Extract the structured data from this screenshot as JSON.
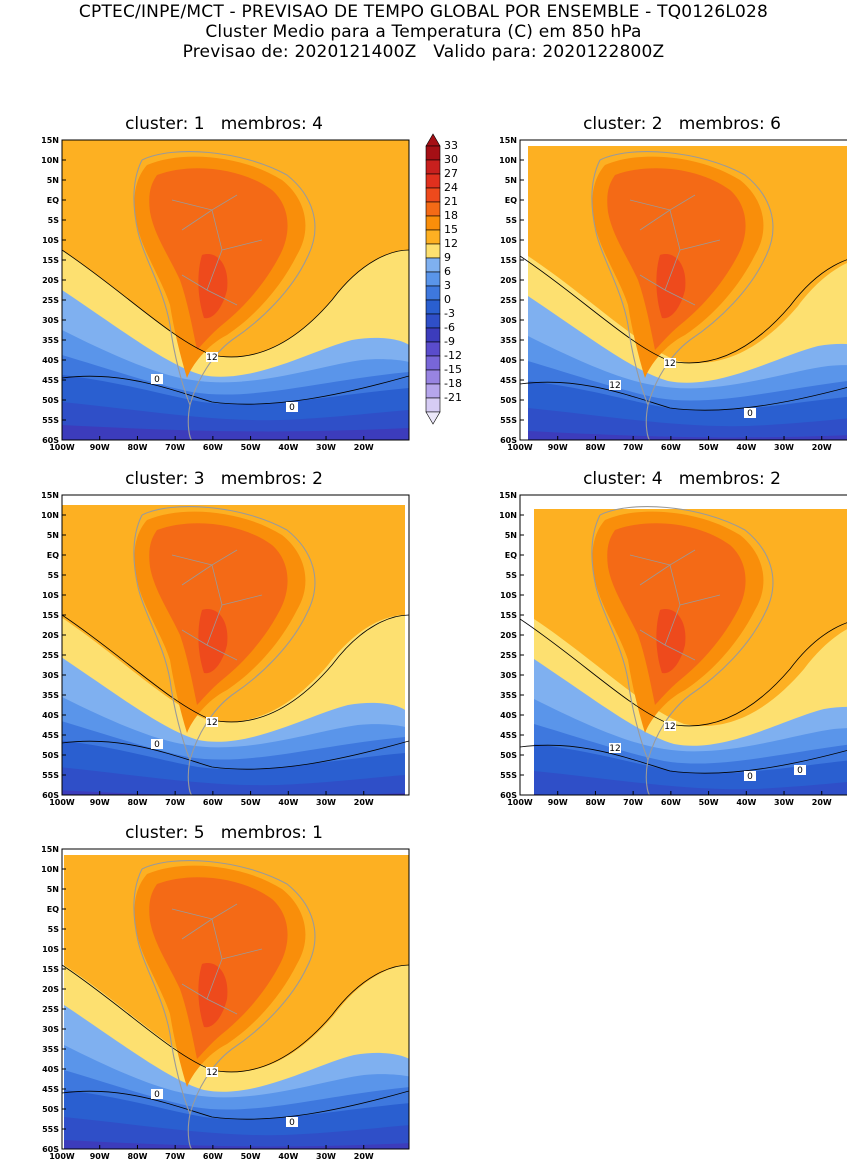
{
  "header": {
    "line1": "CPTEC/INPE/MCT - PREVISAO DE TEMPO GLOBAL POR ENSEMBLE - TQ0126L028",
    "line2": "Cluster Medio para a Temperatura (C) em 850 hPa",
    "line3": "Previsao de: 2020121400Z   Valido para: 2020122800Z"
  },
  "lat_labels": [
    "15N",
    "10N",
    "5N",
    "EQ",
    "5S",
    "10S",
    "15S",
    "20S",
    "25S",
    "30S",
    "35S",
    "40S",
    "45S",
    "50S",
    "55S",
    "60S"
  ],
  "lon_labels": [
    "100W",
    "90W",
    "80W",
    "70W",
    "60W",
    "50W",
    "40W",
    "30W",
    "20W"
  ],
  "colorbar": {
    "labels": [
      "33",
      "30",
      "27",
      "24",
      "21",
      "18",
      "15",
      "12",
      "9",
      "6",
      "3",
      "0",
      "-3",
      "-6",
      "-9",
      "-12",
      "-15",
      "-18",
      "-21"
    ],
    "colors": [
      "#a50f15",
      "#c8201e",
      "#e0301e",
      "#ee4a1c",
      "#f46a16",
      "#f98e0a",
      "#fdb022",
      "#fde070",
      "#7fb0f0",
      "#5a95ea",
      "#3e78de",
      "#2a5fd0",
      "#2f4fc8",
      "#3c3cbc",
      "#5a4ccc",
      "#7866d8",
      "#9884e2",
      "#b6a6ec",
      "#d6ccf4"
    ]
  },
  "panels": [
    {
      "title": "cluster: 1   membros: 4",
      "contour_labels": [
        "12",
        "0",
        "0"
      ]
    },
    {
      "title": "cluster: 2   membros: 6",
      "contour_labels": [
        "12",
        "12",
        "0"
      ]
    },
    {
      "title": "cluster: 3   membros: 2",
      "contour_labels": [
        "12",
        "0"
      ]
    },
    {
      "title": "cluster: 4   membros: 2",
      "contour_labels": [
        "12",
        "12",
        "0",
        "0"
      ]
    },
    {
      "title": "cluster: 5   membros: 1",
      "contour_labels": [
        "12",
        "0",
        "0"
      ]
    }
  ]
}
